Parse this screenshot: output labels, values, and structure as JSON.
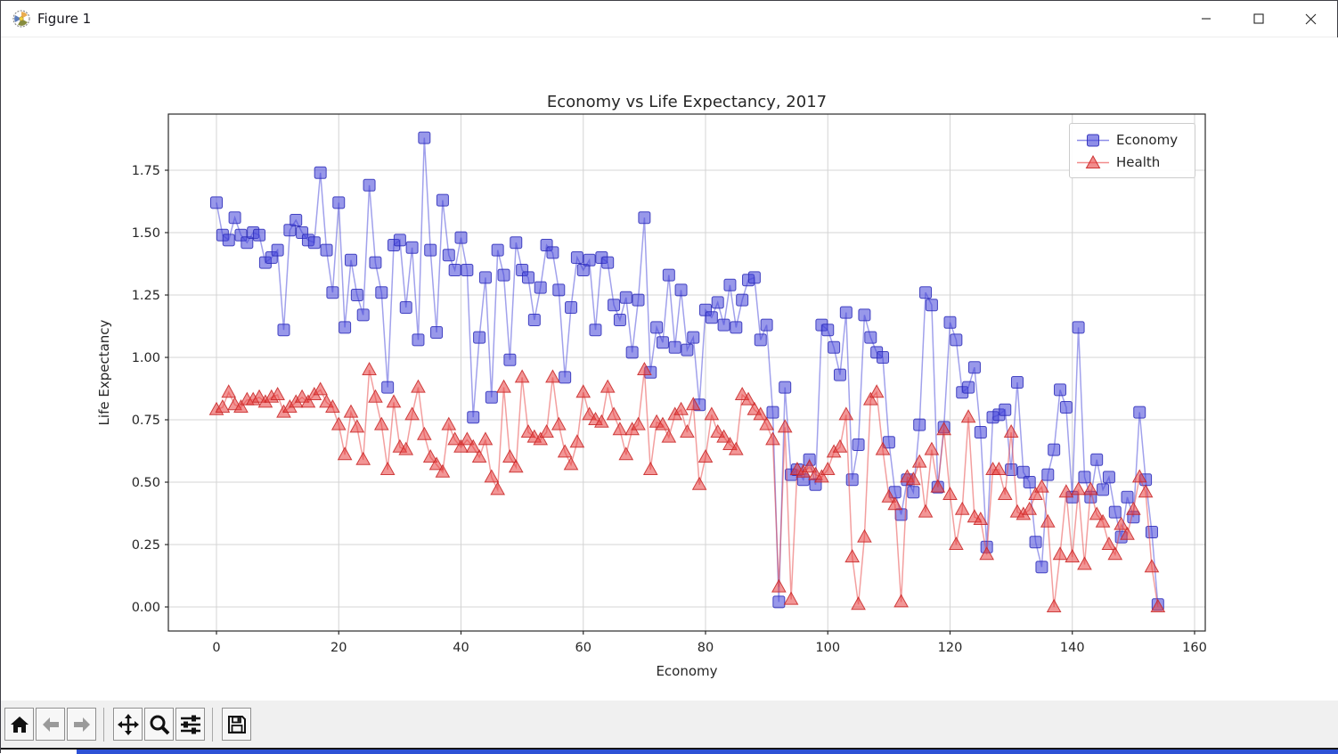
{
  "window": {
    "title": "Figure 1",
    "controls": {
      "minimize": "minimize",
      "maximize": "maximize",
      "close": "close"
    }
  },
  "toolbar": {
    "icons": [
      "home-icon",
      "back-arrow-icon",
      "forward-arrow-icon",
      "pan-icon",
      "zoom-magnifier-icon",
      "subplots-sliders-icon",
      "save-floppy-icon"
    ]
  },
  "chart_data": {
    "type": "line",
    "title": "Economy vs Life Expectancy, 2017",
    "xlabel": "Economy",
    "ylabel": "Life Expectancy",
    "xlim": [
      -7.87,
      161.75
    ],
    "ylim": [
      -0.0964,
      1.975
    ],
    "xticks": [
      0,
      20,
      40,
      60,
      80,
      100,
      120,
      140,
      160
    ],
    "yticks": [
      {
        "v": 0.0,
        "label": "0.00"
      },
      {
        "v": 0.25,
        "label": "0.25"
      },
      {
        "v": 0.5,
        "label": "0.50"
      },
      {
        "v": 0.75,
        "label": "0.75"
      },
      {
        "v": 1.0,
        "label": "1.00"
      },
      {
        "v": 1.25,
        "label": "1.25"
      },
      {
        "v": 1.5,
        "label": "1.50"
      },
      {
        "v": 1.75,
        "label": "1.75"
      }
    ],
    "grid": true,
    "legend_position": "upper right",
    "x": {
      "start": 0,
      "step": 1,
      "count": 155
    },
    "series": [
      {
        "name": "Economy",
        "marker": "square",
        "color": "#4343d9",
        "edge_color": "#2a2ab8",
        "values": [
          1.62,
          1.49,
          1.47,
          1.56,
          1.49,
          1.46,
          1.5,
          1.49,
          1.38,
          1.4,
          1.43,
          1.11,
          1.51,
          1.55,
          1.5,
          1.47,
          1.46,
          1.74,
          1.43,
          1.26,
          1.62,
          1.12,
          1.39,
          1.25,
          1.17,
          1.69,
          1.38,
          1.26,
          0.88,
          1.45,
          1.47,
          1.2,
          1.44,
          1.07,
          1.88,
          1.43,
          1.1,
          1.63,
          1.41,
          1.35,
          1.48,
          1.35,
          0.76,
          1.08,
          1.32,
          0.84,
          1.43,
          1.33,
          0.99,
          1.46,
          1.35,
          1.32,
          1.15,
          1.28,
          1.45,
          1.42,
          1.27,
          0.92,
          1.2,
          1.4,
          1.35,
          1.39,
          1.11,
          1.4,
          1.38,
          1.21,
          1.15,
          1.24,
          1.02,
          1.23,
          1.56,
          0.94,
          1.12,
          1.06,
          1.33,
          1.04,
          1.27,
          1.03,
          1.08,
          0.81,
          1.19,
          1.16,
          1.22,
          1.13,
          1.29,
          1.12,
          1.23,
          1.31,
          1.32,
          1.07,
          1.13,
          0.78,
          0.02,
          0.88,
          0.53,
          0.55,
          0.51,
          0.59,
          0.49,
          1.13,
          1.11,
          1.04,
          0.93,
          1.18,
          0.51,
          0.65,
          1.17,
          1.08,
          1.02,
          1.0,
          0.66,
          0.46,
          0.37,
          0.51,
          0.46,
          0.73,
          1.26,
          1.21,
          0.48,
          0.72,
          1.14,
          1.07,
          0.86,
          0.88,
          0.96,
          0.7,
          0.24,
          0.76,
          0.77,
          0.79,
          0.55,
          0.9,
          0.54,
          0.5,
          0.26,
          0.16,
          0.53,
          0.63,
          0.87,
          0.8,
          0.44,
          1.12,
          0.52,
          0.44,
          0.59,
          0.47,
          0.52,
          0.38,
          0.28,
          0.44,
          0.36,
          0.78,
          0.51,
          0.3,
          0.01
        ]
      },
      {
        "name": "Health",
        "marker": "triangle-up",
        "color": "#e84040",
        "edge_color": "#c82525",
        "values": [
          0.79,
          0.8,
          0.86,
          0.81,
          0.8,
          0.83,
          0.83,
          0.84,
          0.82,
          0.84,
          0.85,
          0.78,
          0.8,
          0.82,
          0.84,
          0.82,
          0.85,
          0.87,
          0.82,
          0.8,
          0.73,
          0.61,
          0.78,
          0.72,
          0.59,
          0.95,
          0.84,
          0.73,
          0.55,
          0.82,
          0.64,
          0.63,
          0.77,
          0.88,
          0.69,
          0.6,
          0.57,
          0.54,
          0.73,
          0.67,
          0.64,
          0.67,
          0.64,
          0.6,
          0.67,
          0.52,
          0.47,
          0.88,
          0.6,
          0.56,
          0.92,
          0.7,
          0.68,
          0.67,
          0.7,
          0.92,
          0.73,
          0.62,
          0.57,
          0.66,
          0.86,
          0.77,
          0.75,
          0.74,
          0.88,
          0.77,
          0.71,
          0.61,
          0.71,
          0.73,
          0.95,
          0.55,
          0.74,
          0.73,
          0.68,
          0.77,
          0.79,
          0.7,
          0.81,
          0.49,
          0.6,
          0.77,
          0.7,
          0.68,
          0.65,
          0.63,
          0.85,
          0.83,
          0.79,
          0.77,
          0.73,
          0.67,
          0.08,
          0.72,
          0.03,
          0.55,
          0.54,
          0.56,
          0.53,
          0.52,
          0.55,
          0.62,
          0.64,
          0.77,
          0.2,
          0.01,
          0.28,
          0.83,
          0.86,
          0.63,
          0.44,
          0.41,
          0.02,
          0.52,
          0.51,
          0.58,
          0.38,
          0.63,
          0.48,
          0.71,
          0.45,
          0.25,
          0.39,
          0.76,
          0.36,
          0.35,
          0.21,
          0.55,
          0.55,
          0.45,
          0.7,
          0.38,
          0.37,
          0.39,
          0.45,
          0.48,
          0.34,
          0.0,
          0.21,
          0.46,
          0.2,
          0.47,
          0.17,
          0.47,
          0.37,
          0.34,
          0.25,
          0.21,
          0.33,
          0.29,
          0.39,
          0.52,
          0.46,
          0.16,
          0.0
        ]
      }
    ]
  }
}
